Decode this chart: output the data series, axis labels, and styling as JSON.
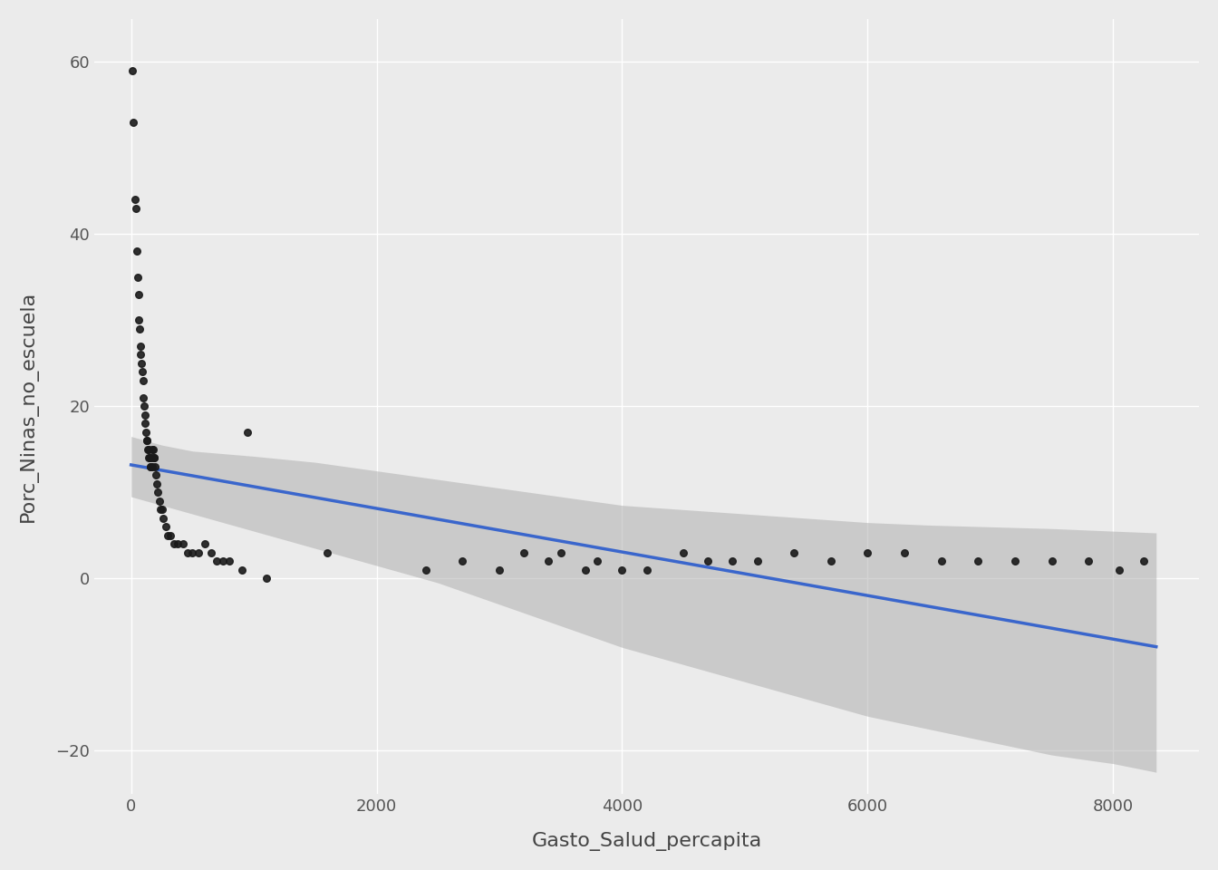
{
  "title": "",
  "xlabel": "Gasto_Salud_percapita",
  "ylabel": "Porc_Ninas_no_escuela",
  "xlim": [
    -300,
    8700
  ],
  "ylim": [
    -25,
    65
  ],
  "xticks": [
    0,
    2000,
    4000,
    6000,
    8000
  ],
  "yticks": [
    -20,
    0,
    20,
    40,
    60
  ],
  "background_color": "#EBEBEB",
  "grid_color": "#FFFFFF",
  "dot_color": "#1a1a1a",
  "line_color": "#3a66cc",
  "ci_color": "#aaaaaa",
  "scatter_x": [
    10,
    20,
    30,
    40,
    50,
    55,
    60,
    65,
    70,
    75,
    80,
    85,
    90,
    95,
    100,
    105,
    110,
    115,
    120,
    125,
    130,
    135,
    140,
    145,
    150,
    155,
    160,
    165,
    170,
    175,
    180,
    185,
    190,
    195,
    200,
    210,
    220,
    230,
    240,
    250,
    260,
    280,
    300,
    320,
    350,
    380,
    420,
    460,
    500,
    550,
    600,
    650,
    700,
    750,
    800,
    900,
    950,
    1100,
    1600,
    2400,
    2700,
    3000,
    3200,
    3400,
    3500,
    3700,
    3800,
    4000,
    4200,
    4500,
    4700,
    4900,
    5100,
    5400,
    5700,
    6000,
    6300,
    6600,
    6900,
    7200,
    7500,
    7800,
    8050,
    8250
  ],
  "scatter_y": [
    59,
    53,
    44,
    43,
    38,
    35,
    33,
    30,
    29,
    27,
    26,
    25,
    24,
    23,
    21,
    20,
    19,
    18,
    17,
    16,
    16,
    15,
    15,
    14,
    14,
    13,
    13,
    14,
    13,
    15,
    15,
    14,
    14,
    13,
    12,
    11,
    10,
    9,
    8,
    8,
    7,
    6,
    5,
    5,
    4,
    4,
    4,
    3,
    3,
    3,
    4,
    3,
    2,
    2,
    2,
    1,
    17,
    0,
    3,
    1,
    2,
    1,
    3,
    2,
    3,
    1,
    2,
    1,
    1,
    3,
    2,
    2,
    2,
    3,
    2,
    3,
    3,
    2,
    2,
    2,
    2,
    2,
    1,
    2
  ],
  "reg_intercept": 13.2,
  "reg_slope": -0.00253,
  "ci_x": [
    0,
    250,
    500,
    1000,
    1500,
    2000,
    2500,
    3000,
    3500,
    4000,
    4500,
    5000,
    5500,
    6000,
    6500,
    7000,
    7500,
    8000,
    8350
  ],
  "ci_upper": [
    16.5,
    15.5,
    14.8,
    14.2,
    13.5,
    12.5,
    11.5,
    10.5,
    9.5,
    8.5,
    8.0,
    7.5,
    7.0,
    6.5,
    6.2,
    6.0,
    5.8,
    5.5,
    5.3
  ],
  "ci_lower": [
    9.5,
    8.5,
    7.5,
    5.5,
    3.5,
    1.5,
    -0.5,
    -3.0,
    -5.5,
    -8.0,
    -10.0,
    -12.0,
    -14.0,
    -16.0,
    -17.5,
    -19.0,
    -20.5,
    -21.5,
    -22.5
  ]
}
